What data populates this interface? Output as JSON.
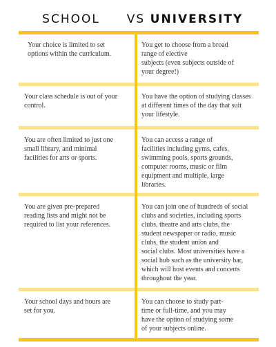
{
  "header": {
    "left": "SCHOOL",
    "middle": "VS",
    "right": "UNIVERSITY"
  },
  "rows": [
    {
      "school": [
        "Your choice is limited to set",
        "options within the curriculum."
      ],
      "university": [
        "You get to choose from a broad",
        "range of elective",
        "subjects (even subjects outside of",
        "your degree!)"
      ]
    },
    {
      "school": [
        "Your class schedule is out of your",
        "control."
      ],
      "university": [
        "You have the option of studying classes",
        "at different times of the day that suit",
        "your lifestyle."
      ]
    },
    {
      "school": [
        "You are often limited to just one",
        "small library, and minimal",
        "facilities for arts or sports."
      ],
      "university": [
        "You can access a range of",
        "facilities including gyms, cafes,",
        "swimming pools, sports grounds,",
        "computer rooms, music or film",
        "equipment and multiple, large",
        "libraries."
      ]
    },
    {
      "school": [
        "You are given pre-prepared",
        "reading lists and might not be",
        "required to list your references."
      ],
      "university": [
        "You can join one of hundreds of social",
        "clubs and societies, including sports",
        "clubs, theatre and arts clubs, the",
        "student newspaper or radio, music",
        "clubs, the student union and",
        "social clubs. Most universities have a",
        "social hub such as the university bar,",
        "which will host events and concerts",
        "throughout the year."
      ]
    },
    {
      "school": [
        "Your school days and hours are",
        "set for you."
      ],
      "university": [
        "You can choose to study part-",
        "time or full-time, and you may",
        "have the option of studying some",
        "of your subjects online."
      ]
    }
  ]
}
